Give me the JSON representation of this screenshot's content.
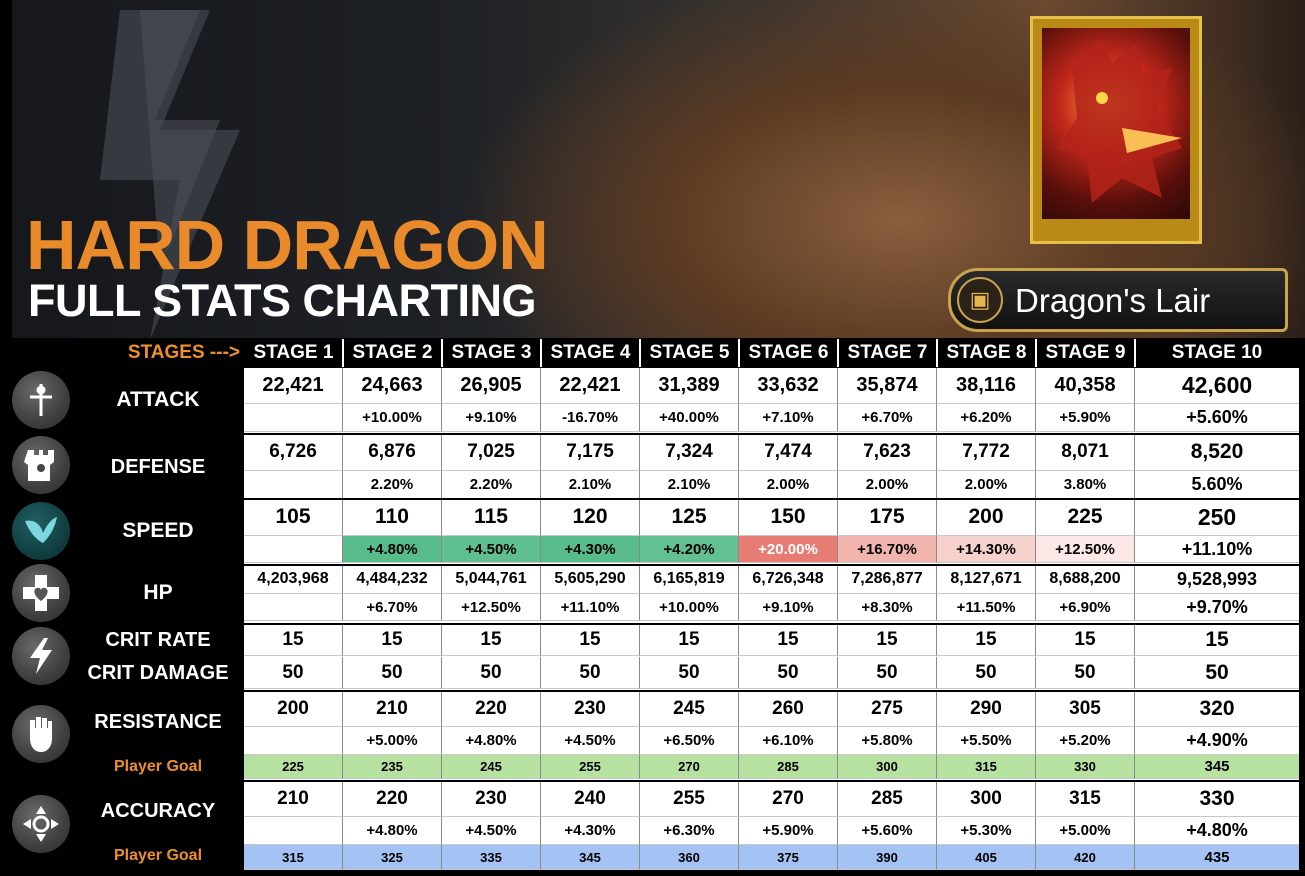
{
  "banner": {
    "title_main": "HARD DRAGON",
    "title_sub": "FULL STATS CHARTING",
    "badge_text": "Dragon's Lair"
  },
  "colors": {
    "title_orange": "#e98a2b",
    "speed_green": "#57bb8a",
    "speed_red_strong": "#e67c73",
    "speed_red_mid": "#f2b5ae",
    "speed_red_light": "#f7d2cd",
    "speed_red_faint": "#fce9e7",
    "goal_green": "#b7e1a1",
    "goal_blue": "#a4c2f4"
  },
  "header": {
    "stages_label": "STAGES --->",
    "stages": [
      "STAGE 1",
      "STAGE 2",
      "STAGE 3",
      "STAGE 4",
      "STAGE 5",
      "STAGE 6",
      "STAGE 7",
      "STAGE 8",
      "STAGE 9",
      "STAGE 10"
    ]
  },
  "rows": {
    "attack": {
      "label": "ATTACK",
      "icon": "sword-icon",
      "values": [
        "22,421",
        "24,663",
        "26,905",
        "22,421",
        "31,389",
        "33,632",
        "35,874",
        "38,116",
        "40,358",
        "42,600"
      ],
      "changes": [
        "",
        "+10.00%",
        "+9.10%",
        "-16.70%",
        "+40.00%",
        "+7.10%",
        "+6.70%",
        "+6.20%",
        "+5.90%",
        "+5.60%"
      ]
    },
    "defense": {
      "label": "DEFENSE",
      "icon": "tower-icon",
      "values": [
        "6,726",
        "6,876",
        "7,025",
        "7,175",
        "7,324",
        "7,474",
        "7,623",
        "7,772",
        "8,071",
        "8,520"
      ],
      "changes": [
        "",
        "2.20%",
        "2.20%",
        "2.10%",
        "2.10%",
        "2.00%",
        "2.00%",
        "2.00%",
        "3.80%",
        "5.60%"
      ]
    },
    "speed": {
      "label": "SPEED",
      "icon": "wing-icon",
      "values": [
        "105",
        "110",
        "115",
        "120",
        "125",
        "150",
        "175",
        "200",
        "225",
        "250"
      ],
      "changes": [
        "",
        "+4.80%",
        "+4.50%",
        "+4.30%",
        "+4.20%",
        "+20.00%",
        "+16.70%",
        "+14.30%",
        "+12.50%",
        "+11.10%"
      ],
      "change_colors": [
        "",
        "#57bb8a",
        "#5fbf8f",
        "#57bb8a",
        "#62c093",
        "#e67c73",
        "#f2b5ae",
        "#f7d2cd",
        "#fce9e7",
        ""
      ]
    },
    "hp": {
      "label": "HP",
      "icon": "heart-icon",
      "values": [
        "4,203,968",
        "4,484,232",
        "5,044,761",
        "5,605,290",
        "6,165,819",
        "6,726,348",
        "7,286,877",
        "8,127,671",
        "8,688,200",
        "9,528,993"
      ],
      "changes": [
        "",
        "+6.70%",
        "+12.50%",
        "+11.10%",
        "+10.00%",
        "+9.10%",
        "+8.30%",
        "+11.50%",
        "+6.90%",
        "+9.70%"
      ]
    },
    "crit_rate": {
      "label": "CRIT RATE",
      "icon": "lightning-icon",
      "values": [
        "15",
        "15",
        "15",
        "15",
        "15",
        "15",
        "15",
        "15",
        "15",
        "15"
      ]
    },
    "crit_damage": {
      "label": "CRIT DAMAGE",
      "values": [
        "50",
        "50",
        "50",
        "50",
        "50",
        "50",
        "50",
        "50",
        "50",
        "50"
      ]
    },
    "resistance": {
      "label": "RESISTANCE",
      "icon": "fist-icon",
      "values": [
        "200",
        "210",
        "220",
        "230",
        "245",
        "260",
        "275",
        "290",
        "305",
        "320"
      ],
      "changes": [
        "",
        "+5.00%",
        "+4.80%",
        "+4.50%",
        "+6.50%",
        "+6.10%",
        "+5.80%",
        "+5.50%",
        "+5.20%",
        "+4.90%"
      ]
    },
    "resistance_goal": {
      "label": "Player Goal",
      "values": [
        "225",
        "235",
        "245",
        "255",
        "270",
        "285",
        "300",
        "315",
        "330",
        "345"
      ]
    },
    "accuracy": {
      "label": "ACCURACY",
      "icon": "crosshair-icon",
      "values": [
        "210",
        "220",
        "230",
        "240",
        "255",
        "270",
        "285",
        "300",
        "315",
        "330"
      ],
      "changes": [
        "",
        "+4.80%",
        "+4.50%",
        "+4.30%",
        "+6.30%",
        "+5.90%",
        "+5.60%",
        "+5.30%",
        "+5.00%",
        "+4.80%"
      ]
    },
    "accuracy_goal": {
      "label": "Player Goal",
      "values": [
        "315",
        "325",
        "335",
        "345",
        "360",
        "375",
        "390",
        "405",
        "420",
        "435"
      ]
    }
  }
}
